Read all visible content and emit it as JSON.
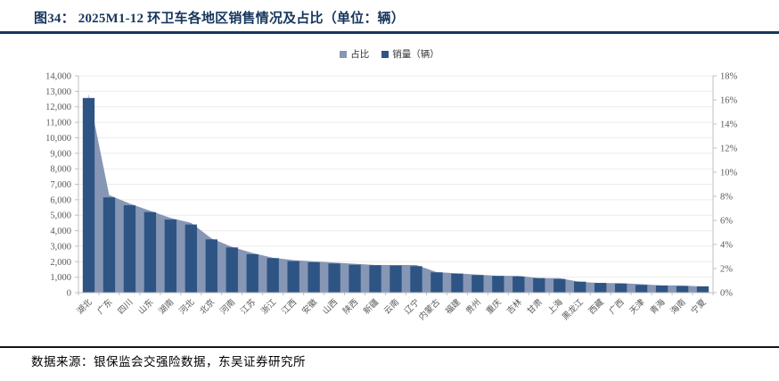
{
  "figure": {
    "title": "图34：  2025M1-12 环卫车各地区销售情况及占比（单位：辆）",
    "source": "数据来源：银保监会交强险数据，东吴证券研究所"
  },
  "legend": {
    "share_label": "占比",
    "sales_label": "销量（辆）"
  },
  "colors": {
    "bar": "#2E5484",
    "area": "#8696B5",
    "title_navy": "#17365D",
    "grid": "#ECECEC",
    "axis_line": "#BFBFBF",
    "tick_text": "#595959"
  },
  "chart_data": {
    "type": "bar",
    "subtype": "combo: bars (sales, left axis) + area (share %, right axis)",
    "title": "2025M1-12 环卫车各地区销售情况及占比（单位：辆）",
    "categories": [
      "湖北",
      "广东",
      "四川",
      "山东",
      "湖南",
      "河北",
      "北京",
      "河南",
      "江苏",
      "浙江",
      "江西",
      "安徽",
      "山西",
      "陕西",
      "新疆",
      "云南",
      "辽宁",
      "内蒙古",
      "福建",
      "贵州",
      "重庆",
      "吉林",
      "甘肃",
      "上海",
      "黑龙江",
      "西藏",
      "广西",
      "天津",
      "青海",
      "海南",
      "宁夏"
    ],
    "series": [
      {
        "name": "销量（辆）",
        "type": "bar",
        "axis": "left",
        "values": [
          12570,
          6150,
          5640,
          5200,
          4720,
          4400,
          3440,
          2920,
          2480,
          2230,
          2030,
          1960,
          1880,
          1800,
          1770,
          1750,
          1710,
          1310,
          1230,
          1130,
          1080,
          1040,
          940,
          880,
          710,
          630,
          580,
          500,
          460,
          420,
          410
        ]
      },
      {
        "name": "占比",
        "type": "area",
        "axis": "right",
        "values_pct": [
          16.5,
          8.1,
          7.4,
          6.8,
          6.2,
          5.8,
          4.5,
          3.8,
          3.3,
          2.9,
          2.7,
          2.6,
          2.5,
          2.4,
          2.3,
          2.3,
          2.3,
          1.7,
          1.6,
          1.5,
          1.4,
          1.4,
          1.2,
          1.2,
          0.9,
          0.8,
          0.8,
          0.7,
          0.6,
          0.6,
          0.5
        ]
      }
    ],
    "left_axis": {
      "min": 0,
      "max": 14000,
      "step": 1000,
      "tick_labels": [
        "0",
        "1,000",
        "2,000",
        "3,000",
        "4,000",
        "5,000",
        "6,000",
        "7,000",
        "8,000",
        "9,000",
        "10,000",
        "11,000",
        "12,000",
        "13,000",
        "14,000"
      ]
    },
    "right_axis": {
      "min": 0,
      "max": 18,
      "step": 2,
      "tick_labels": [
        "0%",
        "2%",
        "4%",
        "6%",
        "8%",
        "10%",
        "12%",
        "14%",
        "16%",
        "18%"
      ]
    },
    "grid": true,
    "legend_position": "top-center"
  }
}
